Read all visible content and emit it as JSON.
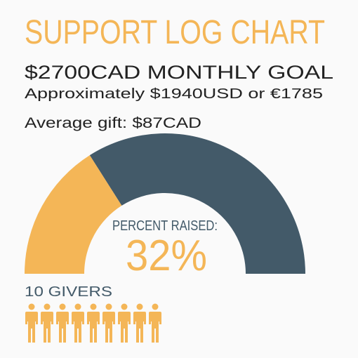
{
  "chart_data": {
    "type": "gauge",
    "title": "SUPPORT LOG CHART",
    "subtitle": [
      "$2700CAD MONTHLY GOAL",
      "Approximately $1940USD or €1785"
    ],
    "annotations": [
      "Average gift: $87CAD",
      "10 GIVERS"
    ],
    "value_title": "PERCENT RAISED:",
    "values": [
      32
    ],
    "value_labels": [
      "32%"
    ],
    "ylim": [
      0,
      100
    ],
    "colors": [
      "#f4b657",
      "#435a69"
    ]
  }
}
